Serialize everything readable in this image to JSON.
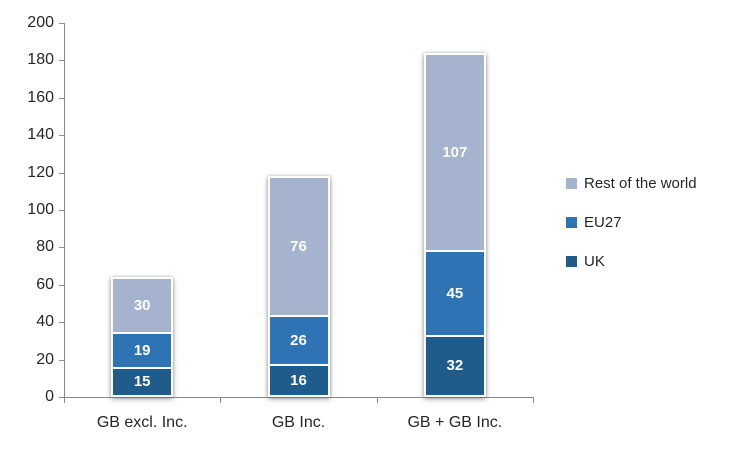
{
  "chart_data": {
    "type": "bar",
    "stacked": true,
    "title": "",
    "xlabel": "",
    "ylabel": "",
    "categories": [
      "GB excl. Inc.",
      "GB Inc.",
      "GB + GB Inc."
    ],
    "series": [
      {
        "name": "UK",
        "color": "#1F5C8B",
        "values": [
          15,
          16,
          32
        ]
      },
      {
        "name": "EU27",
        "color": "#2E74B5",
        "values": [
          19,
          26,
          45
        ]
      },
      {
        "name": "Rest of the world",
        "color": "#A5B3CF",
        "values": [
          30,
          76,
          107
        ]
      }
    ],
    "totals": [
      64,
      118,
      184
    ],
    "ylim": [
      0,
      200
    ],
    "ytick_step": 20,
    "ytick_labels": [
      "0",
      "20",
      "40",
      "60",
      "80",
      "100",
      "120",
      "140",
      "160",
      "180",
      "200"
    ],
    "grid": false,
    "data_labels": true,
    "data_label_color": "#FFFFFF",
    "legend_position": "right",
    "legend_order": [
      "Rest of the world",
      "EU27",
      "UK"
    ],
    "axis_color": "#898989",
    "text_color": "#262626",
    "background_color": "#FFFFFF"
  }
}
